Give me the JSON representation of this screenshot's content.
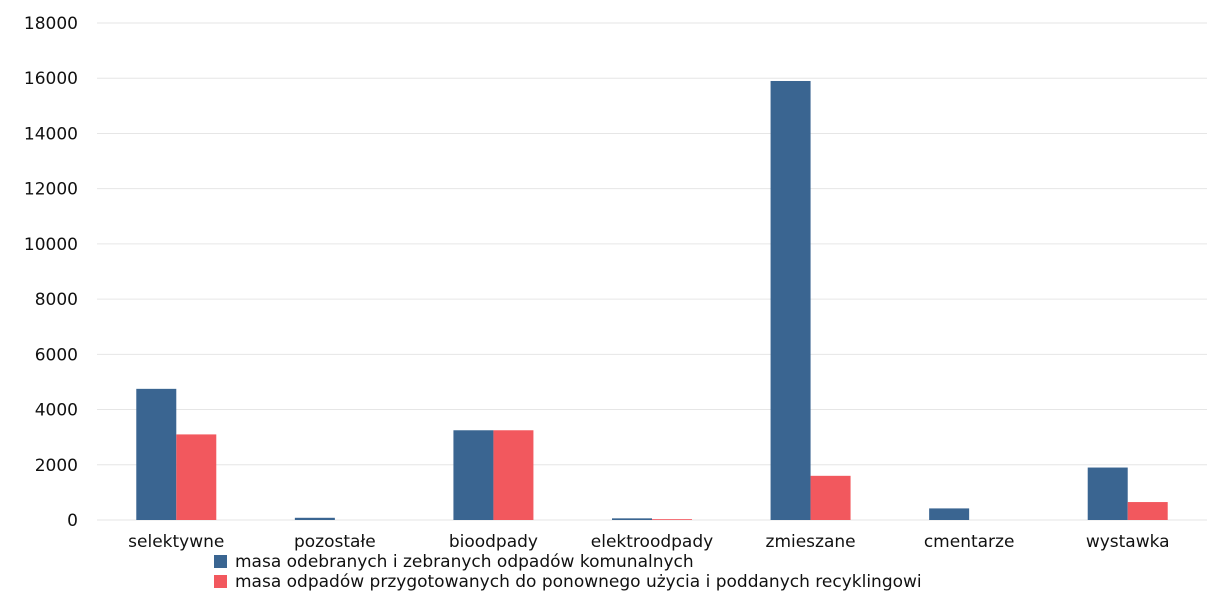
{
  "chart_data": {
    "type": "bar",
    "categories": [
      "selektywne",
      "pozostałe",
      "bioodpady",
      "elektroodpady",
      "zmieszane",
      "cmentarze",
      "wystawka"
    ],
    "series": [
      {
        "name": "masa odebranych i zebranych odpadów komunalnych",
        "color": "#3a6591",
        "values": [
          4750,
          80,
          3250,
          60,
          15900,
          420,
          1900
        ]
      },
      {
        "name": "masa odpadów przygotowanych do ponownego użycia i poddanych recyklingowi",
        "color": "#f2585e",
        "values": [
          3100,
          0,
          3250,
          30,
          1600,
          0,
          650
        ]
      }
    ],
    "yticks": [
      "0",
      "2000",
      "4000",
      "6000",
      "8000",
      "10000",
      "12000",
      "14000",
      "16000",
      "18000"
    ],
    "ylim": [
      0,
      18000
    ],
    "grid": true,
    "legend_position": "bottom"
  }
}
